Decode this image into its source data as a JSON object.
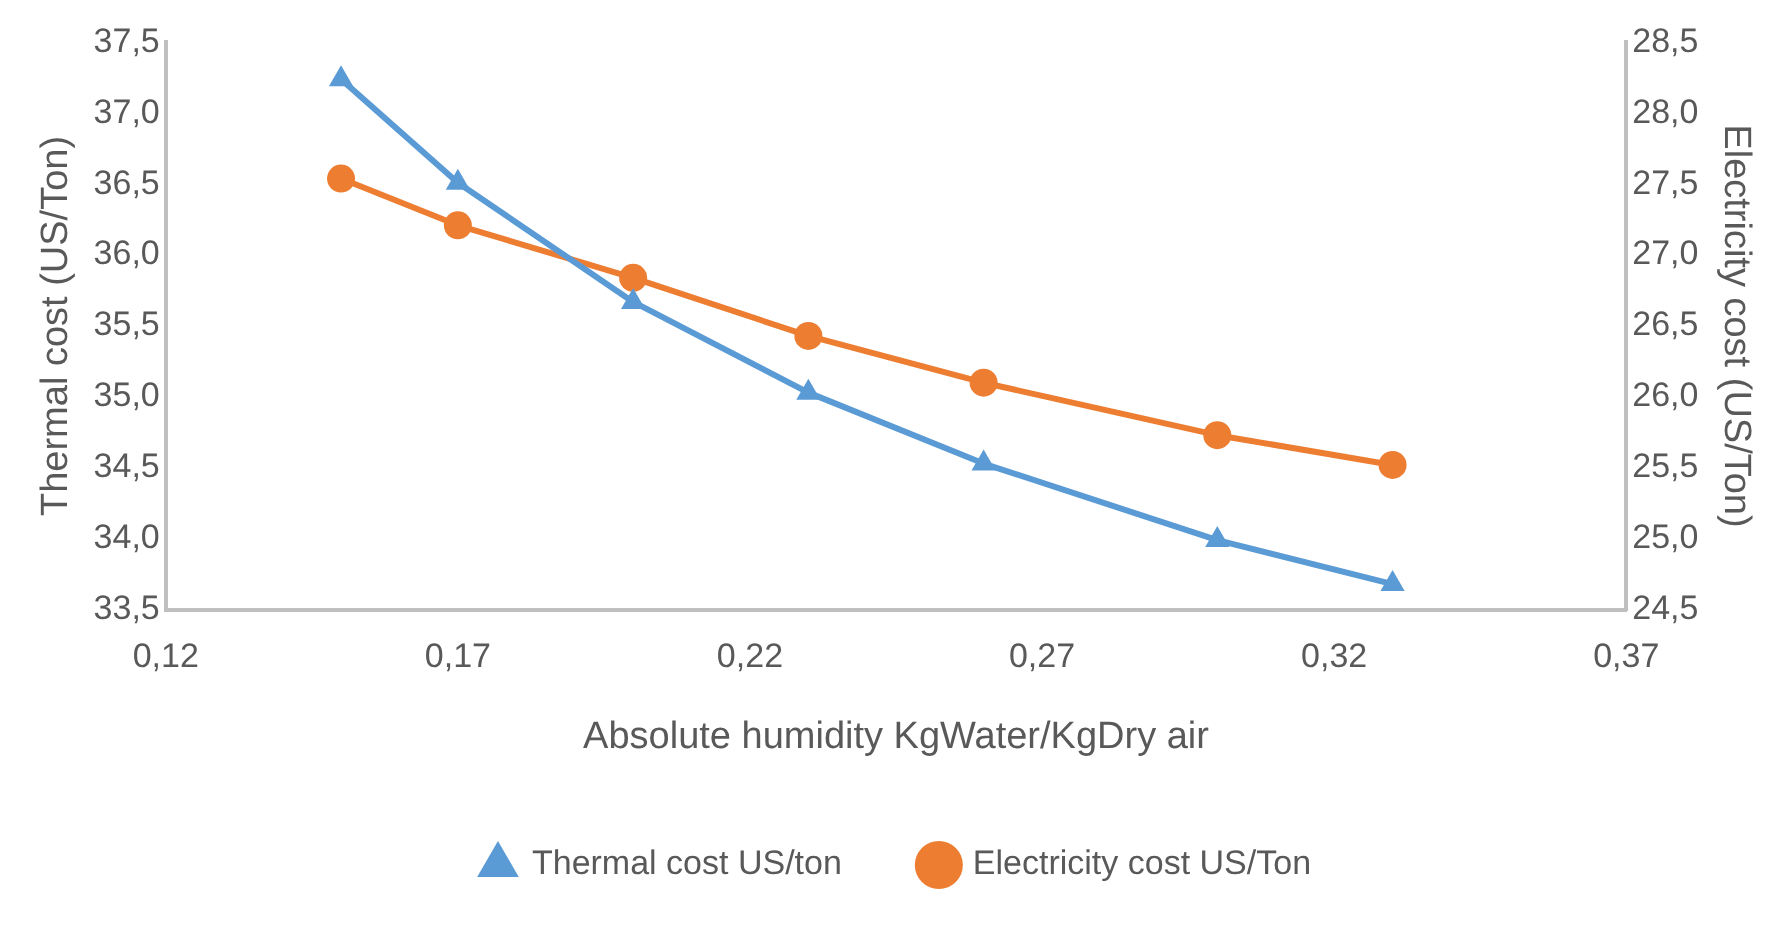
{
  "chart_data": {
    "type": "line",
    "xlabel": "Absolute humidity KgWater/KgDry air",
    "ylabel": "Thermal cost (US/Ton)",
    "y2label": "Electricity cost (US/Ton)",
    "xlim": [
      0.12,
      0.37
    ],
    "xticks": [
      {
        "value": 0.12,
        "label": "0,12"
      },
      {
        "value": 0.17,
        "label": "0,17"
      },
      {
        "value": 0.22,
        "label": "0,22"
      },
      {
        "value": 0.27,
        "label": "0,27"
      },
      {
        "value": 0.32,
        "label": "0,32"
      },
      {
        "value": 0.37,
        "label": "0,37"
      }
    ],
    "ylim": [
      33.5,
      37.5
    ],
    "yticks": [
      {
        "value": 33.5,
        "label": "33,5"
      },
      {
        "value": 34,
        "label": "34,0"
      },
      {
        "value": 34.5,
        "label": "34,5"
      },
      {
        "value": 35,
        "label": "35,0"
      },
      {
        "value": 35.5,
        "label": "35,5"
      },
      {
        "value": 36,
        "label": "36,0"
      },
      {
        "value": 36.5,
        "label": "36,5"
      },
      {
        "value": 37,
        "label": "37,0"
      },
      {
        "value": 37.5,
        "label": "37,5"
      }
    ],
    "y2lim": [
      24.5,
      28.5
    ],
    "y2ticks": [
      {
        "value": 24.5,
        "label": "24,5"
      },
      {
        "value": 25,
        "label": "25,0"
      },
      {
        "value": 25.5,
        "label": "25,5"
      },
      {
        "value": 26,
        "label": "26,0"
      },
      {
        "value": 26.5,
        "label": "26,5"
      },
      {
        "value": 27,
        "label": "27,0"
      },
      {
        "value": 27.5,
        "label": "27,5"
      },
      {
        "value": 28,
        "label": "28,0"
      },
      {
        "value": 28.5,
        "label": "28,5"
      }
    ],
    "x": [
      0.15,
      0.17,
      0.2,
      0.23,
      0.26,
      0.3,
      0.33
    ],
    "series": [
      {
        "name": "Thermal cost US/ton",
        "color": "#5b9bd5",
        "marker": "triangle",
        "values": [
          37.24,
          36.51,
          35.67,
          35.03,
          34.53,
          33.99,
          33.68
        ]
      },
      {
        "name": "Electricity cost US/Ton",
        "color": "#ed7d31",
        "marker": "circle",
        "axis": "y2",
        "values": [
          27.54,
          27.21,
          26.84,
          26.43,
          26.1,
          25.73,
          25.52
        ]
      }
    ],
    "grid": false,
    "legend": "bottom",
    "line_style": "solid"
  }
}
